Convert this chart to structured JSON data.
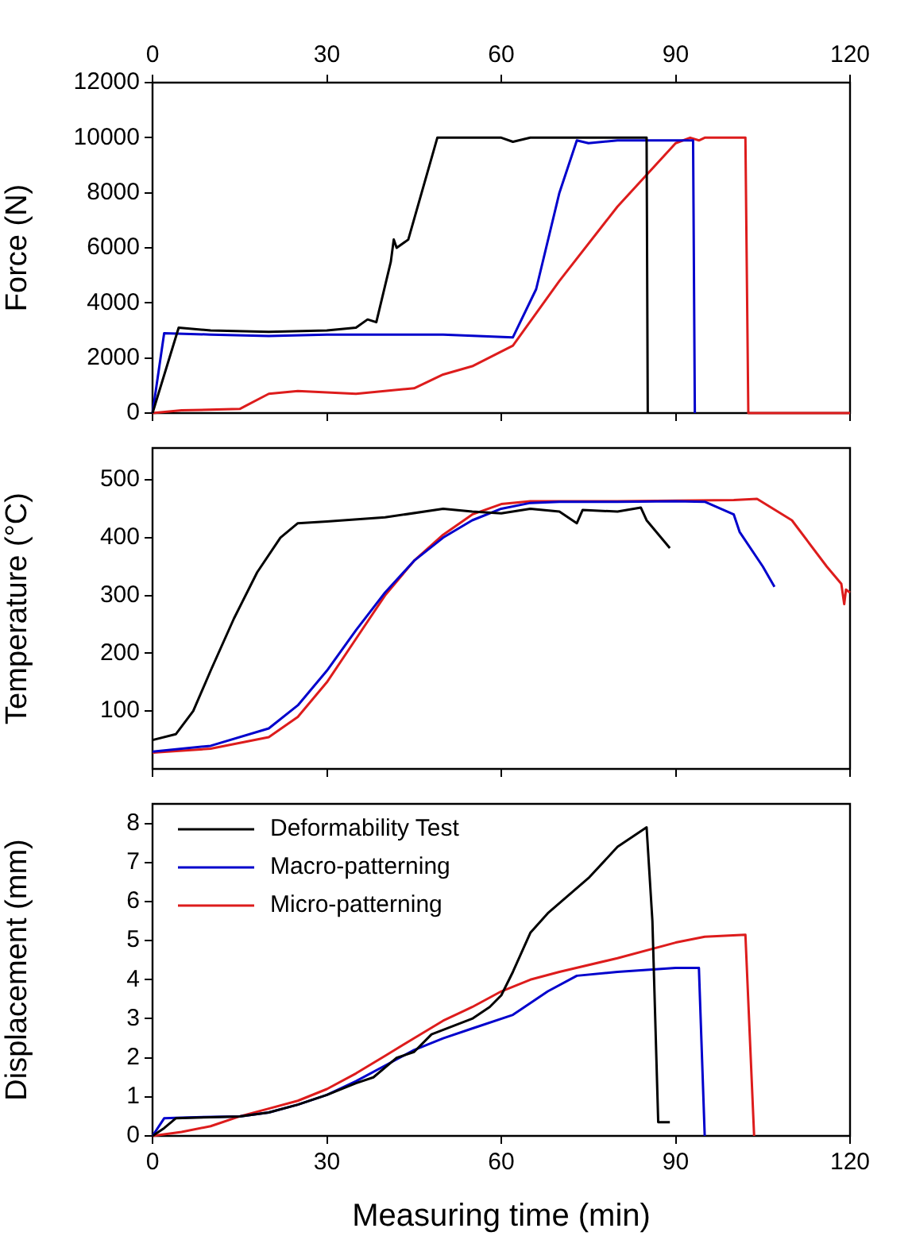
{
  "chart_data": [
    {
      "type": "line",
      "ylabel": "Force (N)",
      "xlim": [
        0,
        120
      ],
      "xticks": [
        0,
        30,
        60,
        90,
        120
      ],
      "x2lim": [
        0,
        120
      ],
      "x2ticks": [
        0,
        30,
        60,
        90,
        120
      ],
      "ylim": [
        0,
        12000
      ],
      "yticks": [
        0,
        2000,
        4000,
        6000,
        8000,
        10000,
        12000
      ],
      "tick_labels": "y",
      "grid": false,
      "legend": false,
      "marker": "none",
      "line_style": "solid",
      "series": [
        {
          "color": "#000000",
          "x": [
            0,
            4.5,
            10,
            20,
            30,
            35,
            37,
            38.5,
            41,
            41.5,
            42,
            44,
            49,
            60,
            62,
            65,
            85,
            85.2
          ],
          "values": [
            0,
            3100,
            3000,
            2950,
            3000,
            3100,
            3400,
            3300,
            5500,
            6300,
            6000,
            6300,
            10000,
            10000,
            9850,
            10000,
            10000,
            0
          ]
        },
        {
          "color": "#0000cc",
          "x": [
            0,
            2,
            10,
            20,
            30,
            40,
            50,
            62,
            66,
            70,
            73,
            75,
            80,
            93,
            93.3
          ],
          "values": [
            0,
            2900,
            2850,
            2800,
            2850,
            2850,
            2850,
            2750,
            4500,
            8000,
            9900,
            9800,
            9900,
            9900,
            0
          ]
        },
        {
          "color": "#dd1c1c",
          "x": [
            0,
            5,
            15,
            20,
            25,
            35,
            45,
            50,
            55,
            62,
            70,
            80,
            90,
            92.5,
            94,
            95,
            102,
            102.5,
            120
          ],
          "values": [
            0,
            100,
            150,
            700,
            800,
            700,
            900,
            1400,
            1700,
            2450,
            4800,
            7500,
            9800,
            10000,
            9900,
            10000,
            10000,
            0,
            0
          ]
        }
      ]
    },
    {
      "type": "line",
      "ylabel": "Temperature (°C)",
      "xlim": [
        0,
        120
      ],
      "xticks": [
        0,
        30,
        60,
        90,
        120
      ],
      "ylim": [
        0,
        555
      ],
      "yticks": [
        100,
        200,
        300,
        400,
        500
      ],
      "tick_labels": "y",
      "grid": false,
      "legend": false,
      "marker": "none",
      "line_style": "solid",
      "series": [
        {
          "color": "#000000",
          "x": [
            0,
            4,
            7,
            10,
            14,
            18,
            22,
            25,
            30,
            40,
            50,
            55,
            60,
            65,
            70,
            73,
            74,
            80,
            84,
            85,
            89
          ],
          "values": [
            50,
            60,
            100,
            170,
            260,
            340,
            400,
            425,
            428,
            435,
            450,
            445,
            442,
            450,
            445,
            425,
            448,
            445,
            452,
            430,
            382
          ]
        },
        {
          "color": "#0000cc",
          "x": [
            0,
            10,
            20,
            25,
            30,
            35,
            40,
            45,
            50,
            55,
            60,
            65,
            70,
            80,
            90,
            95,
            100,
            101,
            105,
            107
          ],
          "values": [
            30,
            40,
            70,
            110,
            170,
            240,
            305,
            360,
            400,
            430,
            450,
            460,
            462,
            462,
            463,
            462,
            440,
            410,
            350,
            315
          ]
        },
        {
          "color": "#dd1c1c",
          "x": [
            0,
            10,
            20,
            25,
            30,
            35,
            40,
            45,
            50,
            55,
            60,
            65,
            80,
            100,
            104,
            110,
            116,
            118.5,
            119,
            119.3,
            120
          ],
          "values": [
            28,
            35,
            55,
            90,
            150,
            225,
            300,
            360,
            405,
            440,
            458,
            463,
            463,
            465,
            467,
            430,
            350,
            320,
            285,
            310,
            305
          ]
        }
      ]
    },
    {
      "type": "line",
      "xlabel": "Measuring time (min)",
      "ylabel": "Displacement (mm)",
      "xlim": [
        0,
        120
      ],
      "xticks": [
        0,
        30,
        60,
        90,
        120
      ],
      "ylim": [
        0,
        8.5
      ],
      "yticks": [
        0,
        1,
        2,
        3,
        4,
        5,
        6,
        7,
        8
      ],
      "grid": false,
      "legend": "top left",
      "marker": "none",
      "line_style": "solid",
      "series": [
        {
          "name": "Deformability Test",
          "color": "#000000",
          "x": [
            0,
            2,
            4,
            10,
            15,
            20,
            25,
            30,
            35,
            38,
            42,
            45,
            48,
            55,
            58,
            60,
            62,
            65,
            68,
            75,
            80,
            85,
            86,
            87,
            89
          ],
          "values": [
            0,
            0.2,
            0.45,
            0.48,
            0.5,
            0.6,
            0.8,
            1.05,
            1.35,
            1.5,
            2.0,
            2.15,
            2.6,
            3.0,
            3.3,
            3.6,
            4.2,
            5.2,
            5.7,
            6.6,
            7.4,
            7.9,
            5.5,
            0.35,
            0.35
          ]
        },
        {
          "name": "Macro-patterning",
          "color": "#0000cc",
          "x": [
            0,
            2,
            5,
            15,
            20,
            25,
            30,
            35,
            40,
            45,
            50,
            55,
            62,
            68,
            73,
            80,
            90,
            94,
            95
          ],
          "values": [
            0,
            0.45,
            0.47,
            0.5,
            0.6,
            0.8,
            1.05,
            1.4,
            1.8,
            2.2,
            2.5,
            2.75,
            3.1,
            3.7,
            4.1,
            4.2,
            4.3,
            4.3,
            0
          ]
        },
        {
          "name": "Micro-patterning",
          "color": "#dd1c1c",
          "x": [
            0,
            5,
            10,
            15,
            20,
            25,
            30,
            35,
            40,
            45,
            50,
            55,
            60,
            65,
            70,
            80,
            90,
            95,
            102,
            103.5
          ],
          "values": [
            0,
            0.1,
            0.25,
            0.5,
            0.7,
            0.9,
            1.2,
            1.6,
            2.05,
            2.5,
            2.95,
            3.3,
            3.7,
            4.0,
            4.2,
            4.55,
            4.95,
            5.1,
            5.15,
            0
          ]
        }
      ]
    }
  ]
}
